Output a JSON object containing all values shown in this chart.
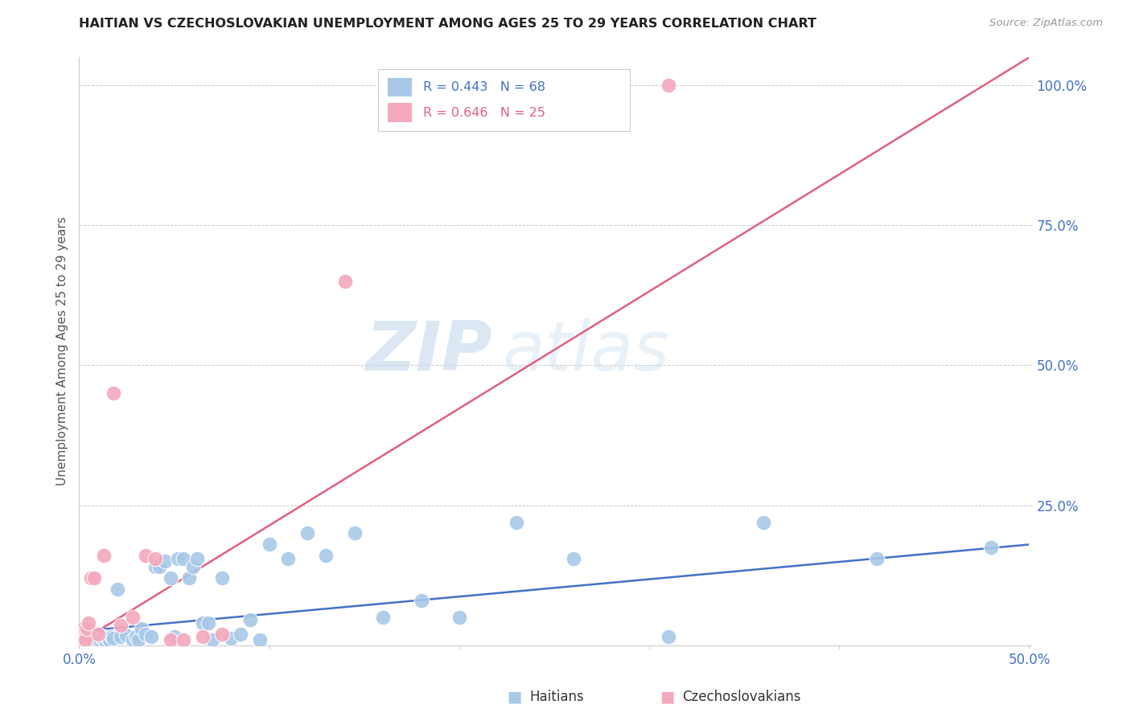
{
  "title": "HAITIAN VS CZECHOSLOVAKIAN UNEMPLOYMENT AMONG AGES 25 TO 29 YEARS CORRELATION CHART",
  "source": "Source: ZipAtlas.com",
  "ylabel": "Unemployment Among Ages 25 to 29 years",
  "xlim": [
    0.0,
    0.5
  ],
  "ylim": [
    0.0,
    1.05
  ],
  "xticks": [
    0.0,
    0.1,
    0.2,
    0.3,
    0.4,
    0.5
  ],
  "yticks": [
    0.0,
    0.25,
    0.5,
    0.75,
    1.0
  ],
  "ytick_labels": [
    "",
    "25.0%",
    "50.0%",
    "75.0%",
    "100.0%"
  ],
  "xtick_labels": [
    "0.0%",
    "",
    "",
    "",
    "",
    "50.0%"
  ],
  "haitian_color": "#a8c8e8",
  "czech_color": "#f4a8be",
  "haitian_line_color": "#4472c4",
  "czech_line_color": "#e06080",
  "legend_label_haitian": "Haitians",
  "legend_label_czech": "Czechoslovakians",
  "watermark_zip": "ZIP",
  "watermark_atlas": "atlas",
  "haitian_x": [
    0.0,
    0.0,
    0.001,
    0.001,
    0.002,
    0.002,
    0.003,
    0.003,
    0.003,
    0.004,
    0.004,
    0.005,
    0.005,
    0.006,
    0.007,
    0.008,
    0.009,
    0.01,
    0.01,
    0.011,
    0.012,
    0.013,
    0.014,
    0.015,
    0.016,
    0.017,
    0.018,
    0.02,
    0.022,
    0.025,
    0.028,
    0.03,
    0.031,
    0.033,
    0.035,
    0.038,
    0.04,
    0.042,
    0.045,
    0.048,
    0.05,
    0.052,
    0.055,
    0.058,
    0.06,
    0.062,
    0.065,
    0.068,
    0.07,
    0.075,
    0.08,
    0.085,
    0.09,
    0.095,
    0.1,
    0.11,
    0.12,
    0.13,
    0.145,
    0.16,
    0.18,
    0.2,
    0.23,
    0.26,
    0.31,
    0.36,
    0.42,
    0.48
  ],
  "haitian_y": [
    0.02,
    0.005,
    0.01,
    0.005,
    0.015,
    0.008,
    0.008,
    0.01,
    0.005,
    0.012,
    0.005,
    0.01,
    0.005,
    0.008,
    0.01,
    0.012,
    0.005,
    0.01,
    0.008,
    0.01,
    0.012,
    0.015,
    0.008,
    0.012,
    0.01,
    0.015,
    0.012,
    0.1,
    0.015,
    0.018,
    0.01,
    0.015,
    0.01,
    0.03,
    0.02,
    0.015,
    0.14,
    0.14,
    0.15,
    0.12,
    0.015,
    0.155,
    0.155,
    0.12,
    0.14,
    0.155,
    0.04,
    0.04,
    0.01,
    0.12,
    0.012,
    0.02,
    0.045,
    0.01,
    0.18,
    0.155,
    0.2,
    0.16,
    0.2,
    0.05,
    0.08,
    0.05,
    0.22,
    0.155,
    0.015,
    0.22,
    0.155,
    0.175
  ],
  "czech_x": [
    0.0,
    0.0,
    0.001,
    0.001,
    0.002,
    0.002,
    0.003,
    0.003,
    0.004,
    0.005,
    0.006,
    0.008,
    0.01,
    0.013,
    0.018,
    0.022,
    0.028,
    0.035,
    0.04,
    0.048,
    0.055,
    0.065,
    0.075,
    0.14,
    0.31
  ],
  "czech_y": [
    0.02,
    0.01,
    0.01,
    0.008,
    0.025,
    0.03,
    0.015,
    0.01,
    0.03,
    0.04,
    0.12,
    0.12,
    0.02,
    0.16,
    0.45,
    0.035,
    0.05,
    0.16,
    0.155,
    0.01,
    0.01,
    0.015,
    0.02,
    0.65,
    1.0
  ],
  "haitian_line_x": [
    0.0,
    0.5
  ],
  "haitian_line_y": [
    0.025,
    0.18
  ],
  "czech_line_x": [
    0.0,
    0.5
  ],
  "czech_line_y": [
    0.005,
    1.05
  ]
}
